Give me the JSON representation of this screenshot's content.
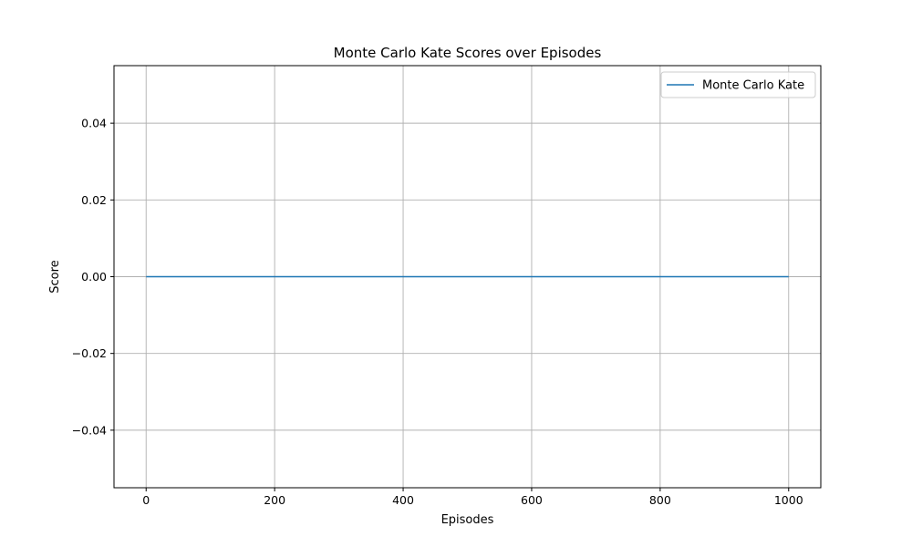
{
  "chart_data": {
    "type": "line",
    "title": "Monte Carlo Kate Scores over Episodes",
    "xlabel": "Episodes",
    "ylabel": "Score",
    "xlim": [
      -50,
      1050
    ],
    "ylim": [
      -0.055,
      0.055
    ],
    "xticks": [
      0,
      200,
      400,
      600,
      800,
      1000
    ],
    "xtick_labels": [
      "0",
      "200",
      "400",
      "600",
      "800",
      "1000"
    ],
    "yticks": [
      -0.04,
      -0.02,
      0.0,
      0.02,
      0.04
    ],
    "ytick_labels": [
      "−0.04",
      "−0.02",
      "0.00",
      "0.02",
      "0.04"
    ],
    "grid": true,
    "legend_position": "top-right",
    "series": [
      {
        "name": "Monte Carlo Kate",
        "color": "#1f77b4",
        "x": [
          0,
          1000
        ],
        "y": [
          0.0,
          0.0
        ]
      }
    ]
  }
}
